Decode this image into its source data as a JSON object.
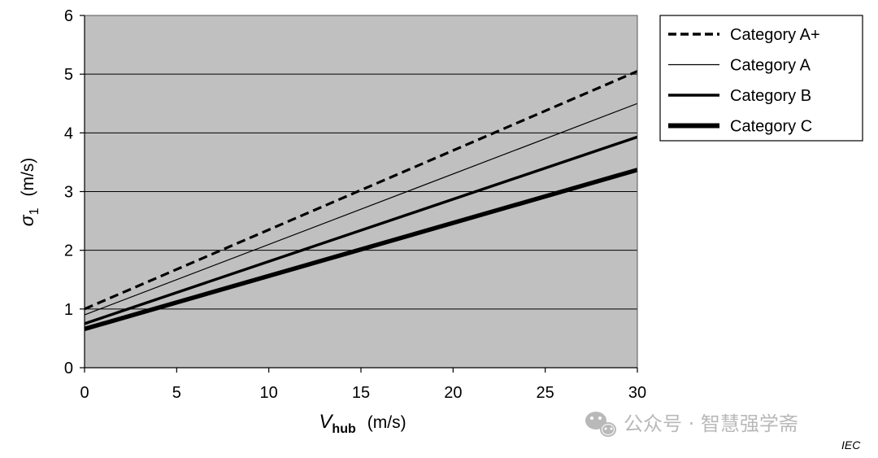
{
  "chart_data": {
    "type": "line",
    "x": [
      0,
      30
    ],
    "xlim": [
      0,
      30
    ],
    "ylim": [
      0,
      6
    ],
    "x_ticks": [
      "0",
      "5",
      "10",
      "15",
      "20",
      "25",
      "30"
    ],
    "y_ticks": [
      "0",
      "1",
      "2",
      "3",
      "4",
      "5",
      "6"
    ],
    "xlabel": {
      "main": "V",
      "sub": "hub",
      "unit": "(m/s)"
    },
    "ylabel": {
      "main": "σ",
      "sub": "1",
      "unit": "(m/s)"
    },
    "grid": "horizontal",
    "plot_background": "#c0c0c0",
    "legend_position": "top-right",
    "series": [
      {
        "name": "Category A+",
        "values": [
          1.0,
          5.05
        ],
        "style": "dashed",
        "weight": "medium",
        "color": "#000000"
      },
      {
        "name": "Category A",
        "values": [
          0.9,
          4.5
        ],
        "style": "solid",
        "weight": "thin",
        "color": "#000000"
      },
      {
        "name": "Category B",
        "values": [
          0.75,
          3.93
        ],
        "style": "solid",
        "weight": "thick",
        "color": "#000000"
      },
      {
        "name": "Category C",
        "values": [
          0.66,
          3.37
        ],
        "style": "solid",
        "weight": "heavy",
        "color": "#000000"
      }
    ]
  },
  "watermark": {
    "icon": "wechat-icon",
    "text": "公众号 · 智慧强学斋"
  },
  "source_label": "IEC"
}
